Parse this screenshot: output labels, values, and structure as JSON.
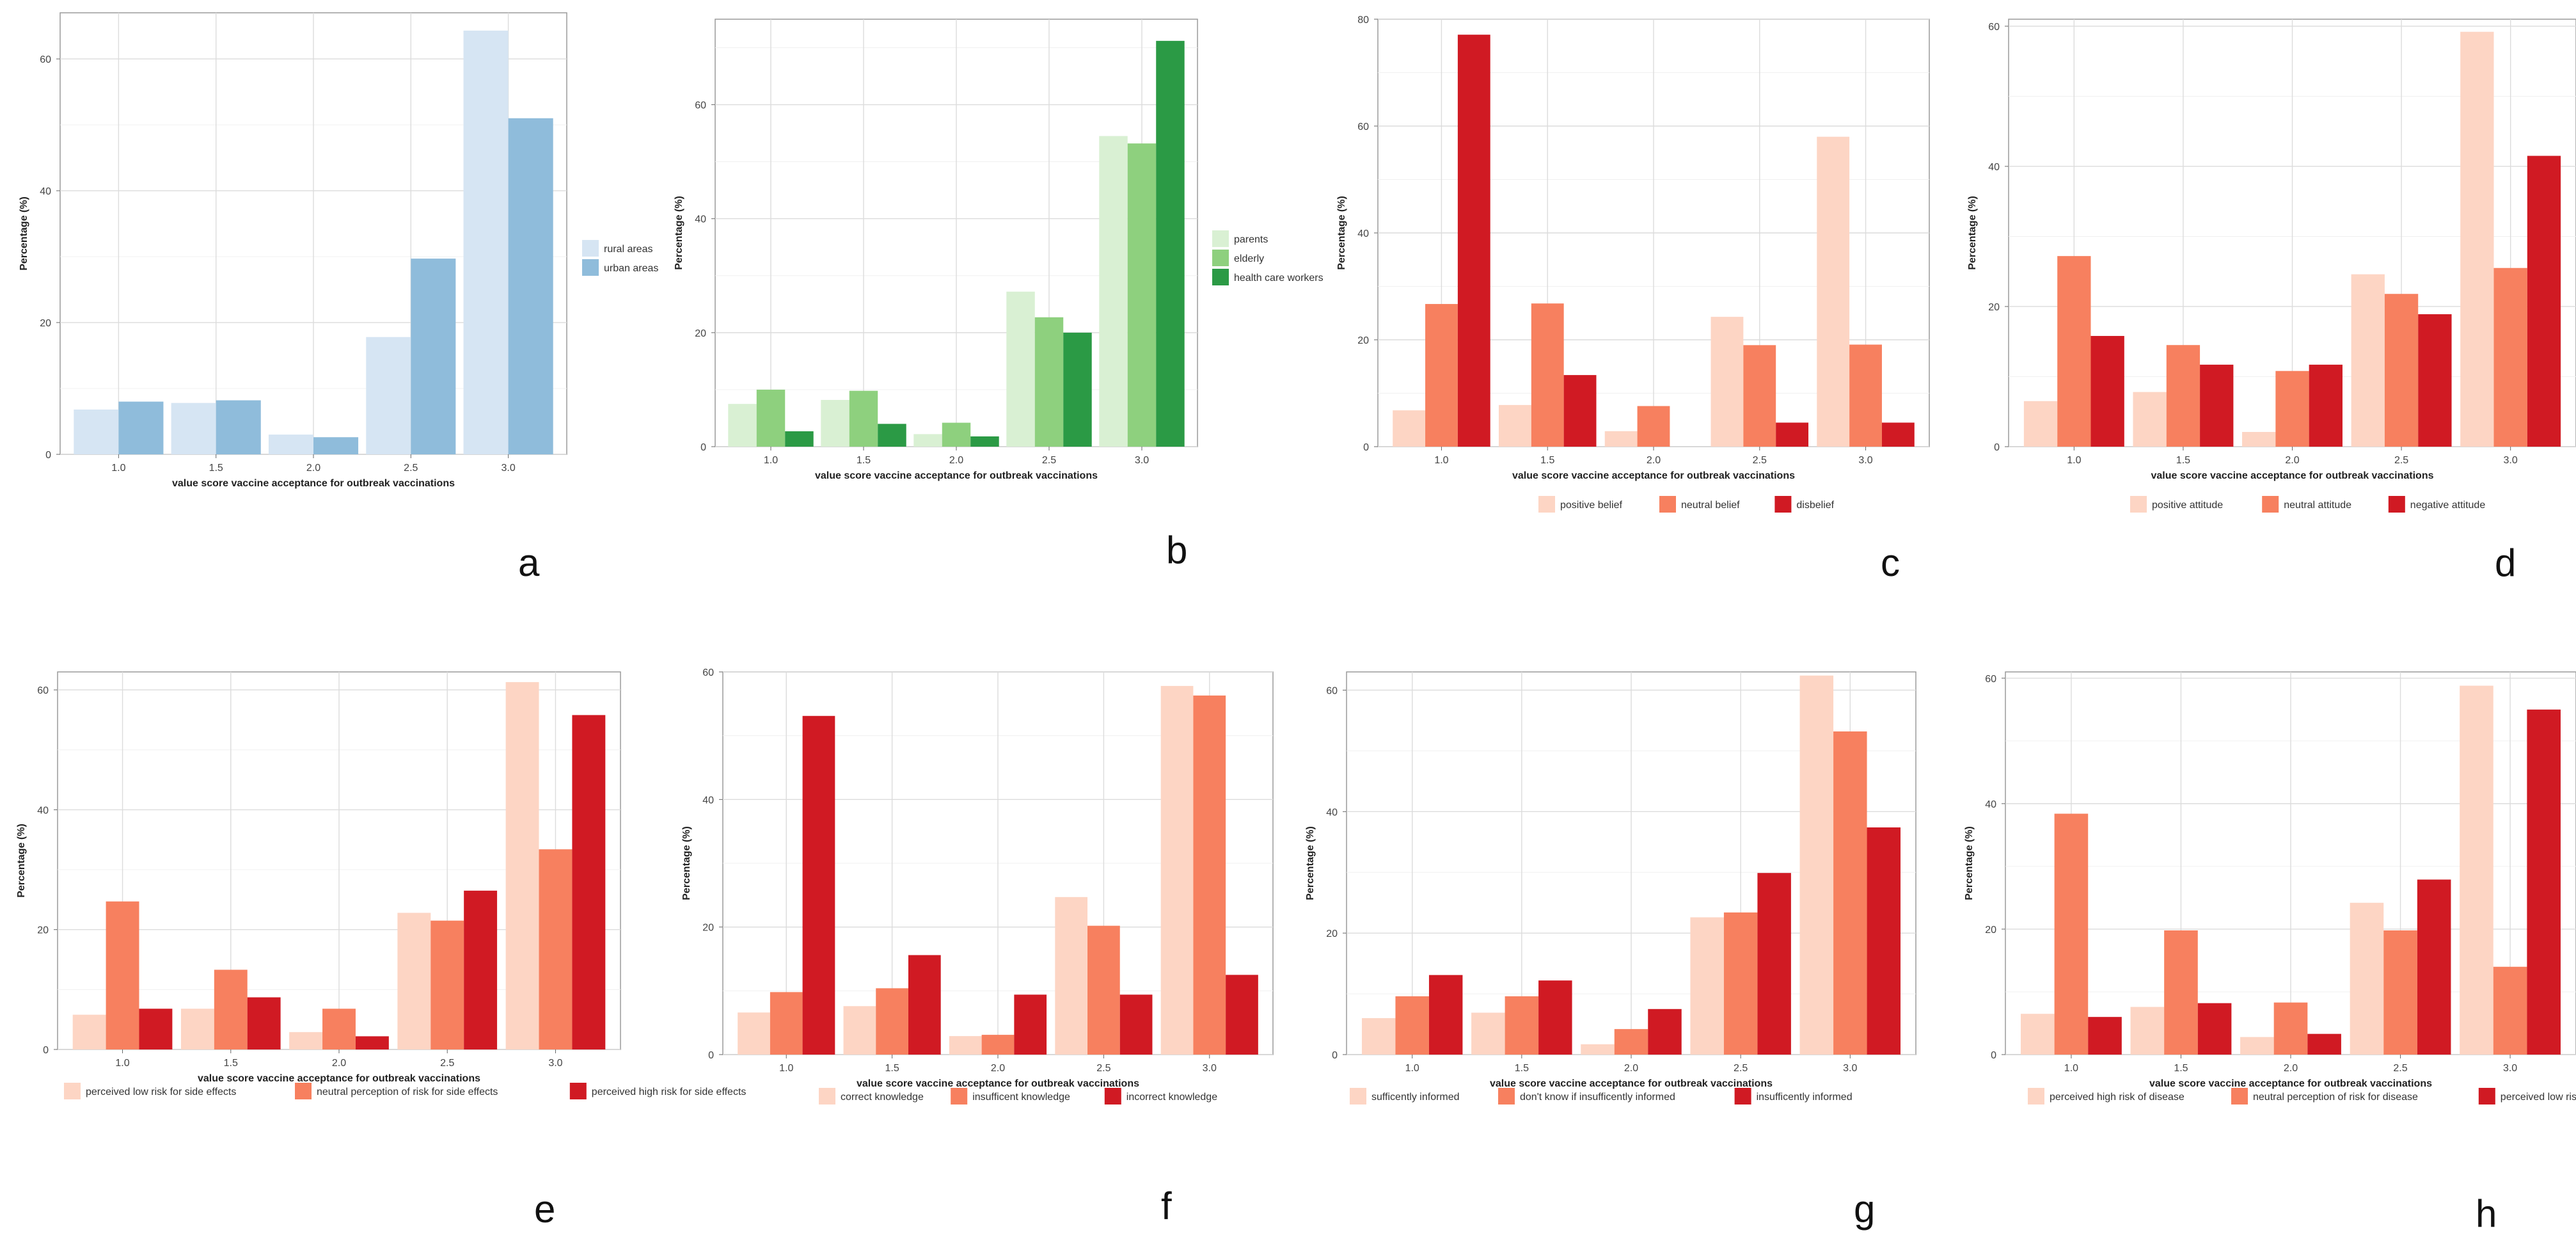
{
  "chart_data": [
    {
      "id": "a",
      "letter": "a",
      "type": "bar",
      "categories": [
        "1.0",
        "1.5",
        "2.0",
        "2.5",
        "3.0"
      ],
      "series": [
        {
          "name": "rural areas",
          "values": [
            6.8,
            7.8,
            3.0,
            17.8,
            64.3
          ]
        },
        {
          "name": "urban areas",
          "values": [
            8.0,
            8.2,
            2.6,
            29.7,
            51.0
          ]
        }
      ],
      "colors": [
        "#d6e5f3",
        "#8fbcdb"
      ],
      "xlabel": "value score vaccine acceptance for outbreak vaccinations",
      "ylabel": "Percentage (%)",
      "ylim": [
        0,
        67
      ],
      "yticks": [
        0,
        20,
        40,
        60
      ],
      "legend": "right"
    },
    {
      "id": "b",
      "letter": "b",
      "type": "bar",
      "categories": [
        "1.0",
        "1.5",
        "2.0",
        "2.5",
        "3.0"
      ],
      "series": [
        {
          "name": "parents",
          "values": [
            7.5,
            8.2,
            2.2,
            27.2,
            54.5
          ]
        },
        {
          "name": "elderly",
          "values": [
            10.0,
            9.8,
            4.2,
            22.7,
            53.2
          ]
        },
        {
          "name": "health care workers",
          "values": [
            2.7,
            4.0,
            1.8,
            20.0,
            71.2
          ]
        }
      ],
      "colors": [
        "#d9f0d3",
        "#8ed07e",
        "#2b9a45"
      ],
      "xlabel": "value score vaccine acceptance for outbreak vaccinations",
      "ylabel": "Percentage (%)",
      "ylim": [
        0,
        75
      ],
      "yticks": [
        0,
        20,
        40,
        60
      ],
      "legend": "right"
    },
    {
      "id": "c",
      "letter": "c",
      "type": "bar",
      "categories": [
        "1.0",
        "1.5",
        "2.0",
        "2.5",
        "3.0"
      ],
      "series": [
        {
          "name": "positive belief",
          "values": [
            6.8,
            7.8,
            2.9,
            24.3,
            58.0
          ]
        },
        {
          "name": "neutral belief",
          "values": [
            26.7,
            26.8,
            7.6,
            19.0,
            19.1
          ]
        },
        {
          "name": "disbelief",
          "values": [
            77.1,
            13.4,
            0,
            4.5,
            4.5
          ]
        }
      ],
      "colors": [
        "#fdd5c4",
        "#f7805f",
        "#d01a23"
      ],
      "xlabel": "value score vaccine acceptance for outbreak vaccinations",
      "ylabel": "Percentage (%)",
      "ylim": [
        0,
        80
      ],
      "yticks": [
        0,
        20,
        40,
        60,
        80
      ],
      "legend": "bottom"
    },
    {
      "id": "d",
      "letter": "d",
      "type": "bar",
      "categories": [
        "1.0",
        "1.5",
        "2.0",
        "2.5",
        "3.0"
      ],
      "series": [
        {
          "name": "positive attitude",
          "values": [
            6.5,
            7.8,
            2.1,
            24.6,
            59.2
          ]
        },
        {
          "name": "neutral attitude",
          "values": [
            27.2,
            14.5,
            10.8,
            21.8,
            25.5
          ]
        },
        {
          "name": "negative attitude",
          "values": [
            15.8,
            11.7,
            11.7,
            18.9,
            41.5
          ]
        }
      ],
      "colors": [
        "#fdd5c4",
        "#f7805f",
        "#d01a23"
      ],
      "xlabel": "value score vaccine acceptance for outbreak vaccinations",
      "ylabel": "Percentage (%)",
      "ylim": [
        0,
        61
      ],
      "yticks": [
        0,
        20,
        40,
        60
      ],
      "legend": "bottom"
    },
    {
      "id": "e",
      "letter": "e",
      "type": "bar",
      "categories": [
        "1.0",
        "1.5",
        "2.0",
        "2.5",
        "3.0"
      ],
      "series": [
        {
          "name": "perceived low risk for side effects",
          "values": [
            5.8,
            6.8,
            2.9,
            22.8,
            61.3
          ]
        },
        {
          "name": "neutral perception of risk for side effects",
          "values": [
            24.7,
            13.3,
            6.8,
            21.5,
            33.4
          ]
        },
        {
          "name": "perceived high risk for side effects",
          "values": [
            6.8,
            8.7,
            2.2,
            26.5,
            55.8
          ]
        }
      ],
      "colors": [
        "#fdd5c4",
        "#f7805f",
        "#d01a23"
      ],
      "xlabel": "value score vaccine acceptance for outbreak vaccinations",
      "ylabel": "Percentage (%)",
      "ylim": [
        0,
        63
      ],
      "yticks": [
        0,
        20,
        40,
        60
      ],
      "legend": "bottom"
    },
    {
      "id": "f",
      "letter": "f",
      "type": "bar",
      "categories": [
        "1.0",
        "1.5",
        "2.0",
        "2.5",
        "3.0"
      ],
      "series": [
        {
          "name": "correct knowledge",
          "values": [
            6.6,
            7.6,
            2.9,
            24.7,
            57.8
          ]
        },
        {
          "name": "insufficent knowledge",
          "values": [
            9.8,
            10.4,
            3.1,
            20.2,
            56.3
          ]
        },
        {
          "name": "incorrect knowledge",
          "values": [
            53.1,
            15.6,
            9.4,
            9.4,
            12.5
          ]
        }
      ],
      "colors": [
        "#fdd5c4",
        "#f7805f",
        "#d01a23"
      ],
      "xlabel": "value score vaccine acceptance for outbreak vaccinations",
      "ylabel": "Percentage (%)",
      "ylim": [
        0,
        60
      ],
      "yticks": [
        0,
        20,
        40,
        60
      ],
      "legend": "bottom"
    },
    {
      "id": "g",
      "letter": "g",
      "type": "bar",
      "categories": [
        "1.0",
        "1.5",
        "2.0",
        "2.5",
        "3.0"
      ],
      "series": [
        {
          "name": "sufficently informed",
          "values": [
            6.0,
            6.9,
            1.7,
            22.6,
            62.4
          ]
        },
        {
          "name": "don't know if insufficently informed",
          "values": [
            9.6,
            9.6,
            4.2,
            23.4,
            53.2
          ]
        },
        {
          "name": "insufficently informed",
          "values": [
            13.1,
            12.2,
            7.5,
            29.9,
            37.4
          ]
        }
      ],
      "colors": [
        "#fdd5c4",
        "#f7805f",
        "#d01a23"
      ],
      "xlabel": "value score vaccine acceptance for outbreak vaccinations",
      "ylabel": "Percentage (%)",
      "ylim": [
        0,
        63
      ],
      "yticks": [
        0,
        20,
        40,
        60
      ],
      "legend": "bottom"
    },
    {
      "id": "h",
      "letter": "h",
      "type": "bar",
      "categories": [
        "1.0",
        "1.5",
        "2.0",
        "2.5",
        "3.0"
      ],
      "series": [
        {
          "name": "perceived high risk of disease",
          "values": [
            6.5,
            7.6,
            2.8,
            24.2,
            58.8
          ]
        },
        {
          "name": "neutral perception of risk for disease",
          "values": [
            38.4,
            19.8,
            8.3,
            19.8,
            14.0
          ]
        },
        {
          "name": "perceived low risk of disease",
          "values": [
            6.0,
            8.2,
            3.3,
            27.9,
            55.0
          ]
        }
      ],
      "colors": [
        "#fdd5c4",
        "#f7805f",
        "#d01a23"
      ],
      "xlabel": "value score vaccine acceptance for outbreak vaccinations",
      "ylabel": "Percentage (%)",
      "ylim": [
        0,
        61
      ],
      "yticks": [
        0,
        20,
        40,
        60
      ],
      "legend": "bottom"
    }
  ]
}
